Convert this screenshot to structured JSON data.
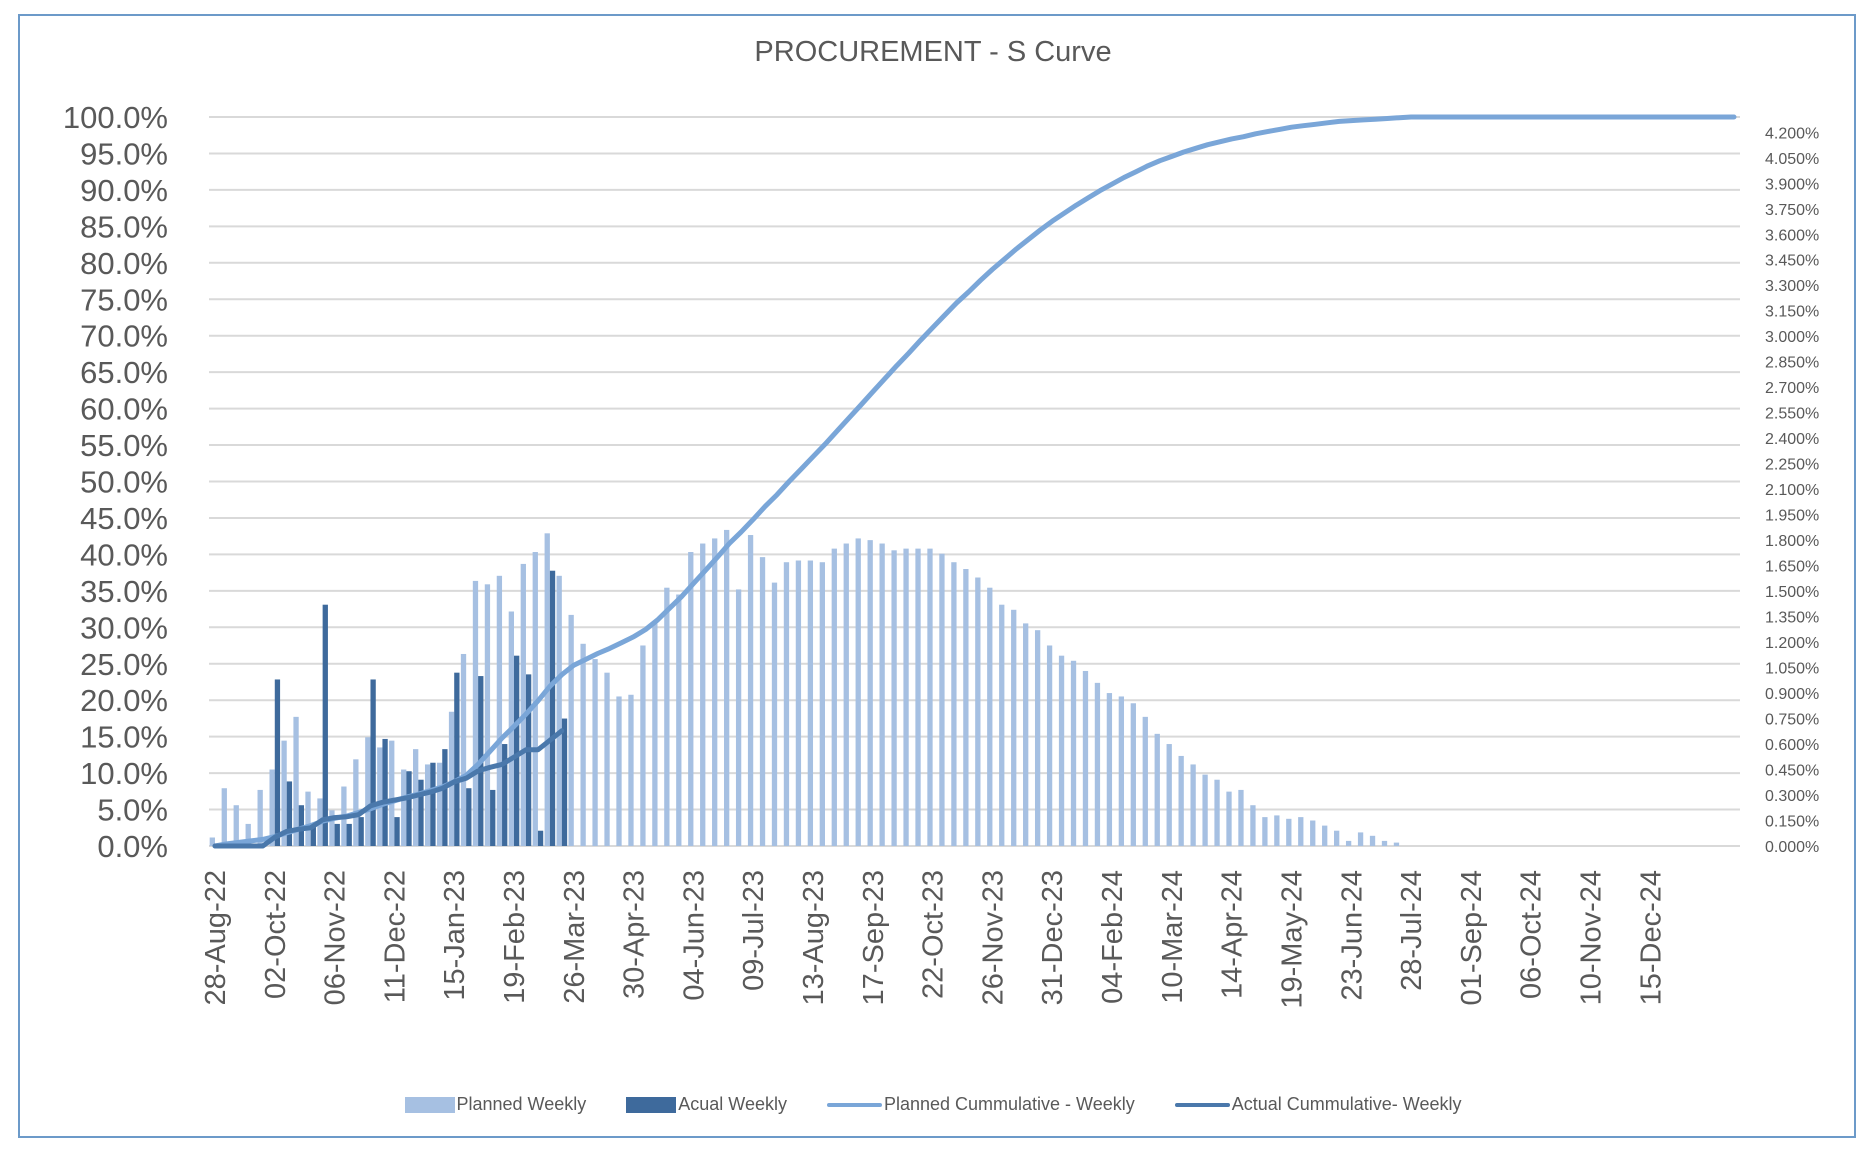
{
  "chart_data": {
    "type": "bar+line",
    "title": "PROCUREMENT - S Curve",
    "x_tick_labels": [
      "28-Aug-22",
      "02-Oct-22",
      "06-Nov-22",
      "11-Dec-22",
      "15-Jan-23",
      "19-Feb-23",
      "26-Mar-23",
      "30-Apr-23",
      "04-Jun-23",
      "09-Jul-23",
      "13-Aug-23",
      "17-Sep-23",
      "22-Oct-23",
      "26-Nov-23",
      "31-Dec-23",
      "04-Feb-24",
      "10-Mar-24",
      "14-Apr-24",
      "19-May-24",
      "23-Jun-24",
      "28-Jul-24",
      "01-Sep-24",
      "06-Oct-24",
      "10-Nov-24",
      "15-Dec-24"
    ],
    "x_interval": "weekly",
    "left_axis": {
      "ylim": [
        0,
        100
      ],
      "ticks": [
        "0.0%",
        "5.0%",
        "10.0%",
        "15.0%",
        "20.0%",
        "25.0%",
        "30.0%",
        "35.0%",
        "40.0%",
        "45.0%",
        "50.0%",
        "55.0%",
        "60.0%",
        "65.0%",
        "70.0%",
        "75.0%",
        "80.0%",
        "85.0%",
        "90.0%",
        "95.0%",
        "100.0%"
      ]
    },
    "right_axis": {
      "ylim": [
        0,
        4.29
      ],
      "ticks": [
        "0.000%",
        "0.150%",
        "0.300%",
        "0.450%",
        "0.600%",
        "0.750%",
        "0.900%",
        "1.050%",
        "1.200%",
        "1.350%",
        "1.500%",
        "1.650%",
        "1.800%",
        "1.950%",
        "2.100%",
        "2.250%",
        "2.400%",
        "2.550%",
        "2.700%",
        "2.850%",
        "3.000%",
        "3.150%",
        "3.300%",
        "3.450%",
        "3.600%",
        "3.750%",
        "3.900%",
        "4.050%",
        "4.200%"
      ]
    },
    "grid": true,
    "legend_position": "bottom",
    "series": [
      {
        "name": "Planned  Weekly",
        "type": "bar",
        "axis": "right",
        "color": "#a6c0e2",
        "values": [
          0.05,
          0.34,
          0.24,
          0.13,
          0.33,
          0.45,
          0.62,
          0.76,
          0.32,
          0.28,
          0.21,
          0.35,
          0.51,
          0.64,
          0.58,
          0.62,
          0.45,
          0.57,
          0.48,
          0.49,
          0.79,
          1.13,
          1.56,
          1.54,
          1.59,
          1.38,
          1.66,
          1.73,
          1.84,
          1.59,
          1.36,
          1.19,
          1.1,
          1.02,
          0.88,
          0.89,
          1.18,
          1.31,
          1.52,
          1.48,
          1.73,
          1.78,
          1.81,
          1.86,
          1.51,
          1.83,
          1.7,
          1.55,
          1.67,
          1.68,
          1.68,
          1.67,
          1.75,
          1.78,
          1.81,
          1.8,
          1.78,
          1.74,
          1.75,
          1.75,
          1.75,
          1.72,
          1.67,
          1.63,
          1.58,
          1.52,
          1.42,
          1.39,
          1.31,
          1.27,
          1.18,
          1.12,
          1.09,
          1.03,
          0.96,
          0.9,
          0.88,
          0.84,
          0.76,
          0.66,
          0.6,
          0.53,
          0.48,
          0.42,
          0.39,
          0.32,
          0.33,
          0.24,
          0.17,
          0.18,
          0.16,
          0.17,
          0.15,
          0.12,
          0.09,
          0.03,
          0.08,
          0.06,
          0.03,
          0.02,
          0,
          0,
          0,
          0,
          0,
          0,
          0,
          0,
          0,
          0,
          0,
          0,
          0,
          0,
          0,
          0,
          0,
          0,
          0,
          0,
          0,
          0,
          0,
          0,
          0,
          0,
          0,
          0
        ]
      },
      {
        "name": "Acual Weekly",
        "type": "bar",
        "axis": "right",
        "color": "#3e6a9c",
        "values": [
          0,
          0,
          0,
          0,
          0,
          0.98,
          0.38,
          0.24,
          0.13,
          1.42,
          0.13,
          0.13,
          0.17,
          0.98,
          0.63,
          0.17,
          0.44,
          0.39,
          0.49,
          0.57,
          1.02,
          0.34,
          1.0,
          0.33,
          0.6,
          1.12,
          1.01,
          0.09,
          1.62,
          0.75
        ]
      },
      {
        "name": "Planned  Cummulative - Weekly",
        "type": "line",
        "axis": "left",
        "color": "#7aa6d8",
        "values": [
          0,
          0.3,
          0.5,
          0.7,
          0.9,
          1.3,
          1.8,
          2.3,
          2.8,
          3.4,
          3.8,
          4.1,
          4.6,
          5.1,
          5.7,
          6.2,
          6.7,
          7.1,
          7.6,
          8.1,
          8.8,
          9.7,
          11.2,
          13.0,
          14.8,
          16.4,
          18.1,
          19.9,
          21.9,
          23.5,
          24.8,
          25.6,
          26.4,
          27.1,
          27.9,
          28.7,
          29.7,
          31.0,
          32.6,
          34.2,
          36.0,
          37.8,
          39.6,
          41.5,
          43.1,
          44.8,
          46.6,
          48.2,
          50.0,
          51.7,
          53.4,
          55.1,
          56.9,
          58.7,
          60.5,
          62.3,
          64.1,
          65.9,
          67.6,
          69.4,
          71.1,
          72.8,
          74.5,
          76.0,
          77.6,
          79.1,
          80.5,
          81.9,
          83.2,
          84.5,
          85.7,
          86.8,
          87.9,
          88.9,
          89.9,
          90.8,
          91.7,
          92.5,
          93.3,
          94.0,
          94.6,
          95.2,
          95.7,
          96.2,
          96.6,
          97.0,
          97.3,
          97.7,
          98.0,
          98.3,
          98.6,
          98.8,
          99.0,
          99.2,
          99.4,
          99.5,
          99.6,
          99.7,
          99.8,
          99.9,
          100,
          100,
          100,
          100,
          100,
          100,
          100,
          100,
          100,
          100,
          100,
          100,
          100,
          100,
          100,
          100,
          100,
          100,
          100,
          100,
          100,
          100,
          100,
          100,
          100,
          100,
          100,
          100
        ]
      },
      {
        "name": "Actual Cummulative- Weekly",
        "type": "line",
        "axis": "left",
        "color": "#4a78ab",
        "values": [
          0,
          0,
          0,
          0,
          0,
          1.2,
          2.0,
          2.3,
          2.5,
          3.6,
          3.9,
          4.0,
          4.3,
          5.5,
          6.0,
          6.3,
          6.6,
          7.0,
          7.4,
          7.9,
          8.8,
          9.3,
          10.3,
          10.8,
          11.2,
          12.2,
          13.2,
          13.2,
          14.5,
          15.8
        ]
      }
    ]
  }
}
